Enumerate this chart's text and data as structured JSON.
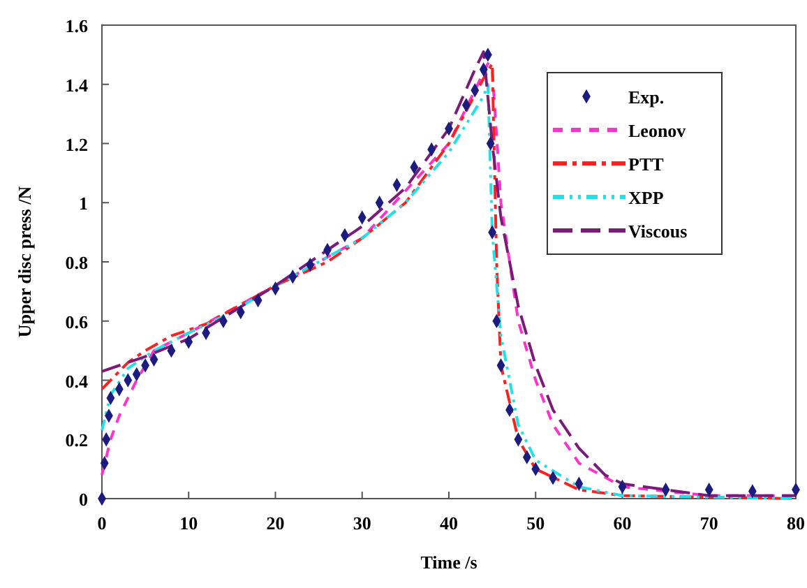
{
  "chart_data": {
    "type": "line",
    "xlabel": "Time /s",
    "ylabel": "Upper disc press /N",
    "xlim": [
      0,
      80
    ],
    "xticks": [
      0,
      10,
      20,
      30,
      40,
      50,
      60,
      70,
      80
    ],
    "ylim": [
      0,
      1.6
    ],
    "yticks": [
      0,
      0.2,
      0.4,
      0.6,
      0.8,
      1,
      1.2,
      1.4,
      1.6
    ],
    "grid": false,
    "legend": "top right",
    "series": [
      {
        "name": "Exp.",
        "type": "scatter",
        "marker": "diamond",
        "color": "#1c1c80",
        "x": [
          0,
          0.3,
          0.5,
          0.8,
          1,
          2,
          3,
          4,
          5,
          6,
          8,
          10,
          12,
          14,
          16,
          18,
          20,
          22,
          24,
          26,
          28,
          30,
          32,
          34,
          36,
          38,
          40,
          42,
          43,
          44,
          44.5,
          44.8,
          45,
          45.5,
          46,
          47,
          48,
          49,
          50,
          52,
          55,
          60,
          65,
          70,
          75,
          80
        ],
        "values": [
          0,
          0.12,
          0.2,
          0.28,
          0.34,
          0.37,
          0.4,
          0.42,
          0.45,
          0.47,
          0.5,
          0.53,
          0.56,
          0.6,
          0.63,
          0.67,
          0.71,
          0.75,
          0.79,
          0.84,
          0.89,
          0.95,
          1.0,
          1.06,
          1.12,
          1.18,
          1.25,
          1.33,
          1.38,
          1.45,
          1.5,
          1.2,
          0.9,
          0.6,
          0.45,
          0.3,
          0.2,
          0.14,
          0.1,
          0.07,
          0.05,
          0.04,
          0.03,
          0.03,
          0.025,
          0.03
        ]
      },
      {
        "name": "Leonov",
        "line_style": "dashed",
        "color": "#ff33cc",
        "x": [
          0,
          1,
          2,
          4,
          6,
          10,
          20,
          30,
          40,
          44.5,
          45,
          46,
          47,
          48,
          50,
          52,
          55,
          60,
          70,
          80
        ],
        "values": [
          0.08,
          0.2,
          0.28,
          0.4,
          0.5,
          0.56,
          0.72,
          0.88,
          1.2,
          1.47,
          1.45,
          1.0,
          0.8,
          0.6,
          0.4,
          0.25,
          0.12,
          0.04,
          0.01,
          0.01
        ]
      },
      {
        "name": "PTT",
        "line_style": "dashed",
        "color": "#ff2020",
        "x": [
          0,
          3,
          5,
          8,
          12,
          20,
          26,
          30,
          35,
          40,
          44,
          45,
          45.5,
          46,
          48,
          50,
          55,
          60,
          80
        ],
        "values": [
          0.37,
          0.46,
          0.5,
          0.55,
          0.59,
          0.72,
          0.8,
          0.88,
          1.0,
          1.2,
          1.42,
          1.47,
          0.8,
          0.45,
          0.2,
          0.1,
          0.03,
          0.01,
          0
        ]
      },
      {
        "name": "XPP",
        "line_style": "dashed",
        "color": "#22e0e8",
        "x": [
          0,
          1,
          3,
          6,
          10,
          15,
          20,
          25,
          30,
          35,
          40,
          44,
          44.5,
          45,
          46,
          48,
          50,
          55,
          60,
          80
        ],
        "values": [
          0.23,
          0.35,
          0.44,
          0.5,
          0.56,
          0.63,
          0.72,
          0.8,
          0.88,
          1.0,
          1.17,
          1.36,
          1.4,
          0.9,
          0.55,
          0.25,
          0.13,
          0.04,
          0.01,
          0
        ]
      },
      {
        "name": "Viscous",
        "line_style": "dashed",
        "color": "#7a1a7a",
        "x": [
          0,
          5,
          10,
          20,
          30,
          35,
          40,
          43,
          44,
          45,
          46,
          48,
          50,
          52,
          55,
          58,
          60,
          70,
          80
        ],
        "values": [
          0.43,
          0.48,
          0.54,
          0.72,
          0.92,
          1.05,
          1.25,
          1.45,
          1.51,
          1.2,
          0.95,
          0.65,
          0.45,
          0.3,
          0.17,
          0.08,
          0.05,
          0.01,
          0.01
        ]
      }
    ]
  }
}
